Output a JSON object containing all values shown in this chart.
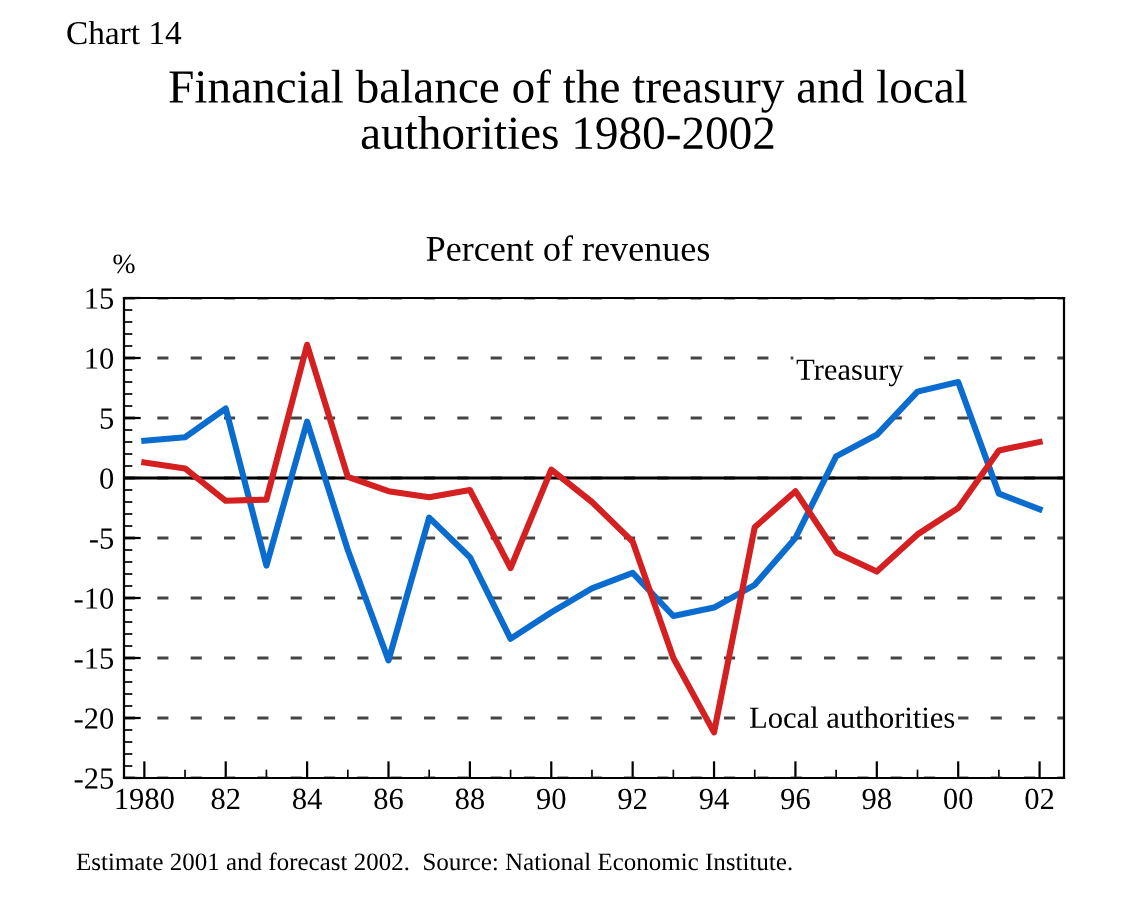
{
  "chart_data": {
    "type": "line",
    "title": "Financial balance of the treasury and local\nauthorities 1980-2002",
    "subtitle": "Percent of revenues",
    "ylabel": "%",
    "annotations": [
      "Chart 14",
      "Estimate 2001 and forecast 2002.  Source: National Economic Institute."
    ],
    "x": [
      1980,
      1981,
      1982,
      1983,
      1984,
      1985,
      1986,
      1987,
      1988,
      1989,
      1990,
      1991,
      1992,
      1993,
      1994,
      1995,
      1996,
      1997,
      1998,
      1999,
      2000,
      2001,
      2002
    ],
    "series": [
      {
        "name": "Treasury",
        "color": "#0a6ccf",
        "values": [
          3.1,
          3.4,
          5.8,
          -7.3,
          4.7,
          -6,
          -15.2,
          -3.3,
          -6.6,
          -13.4,
          -11.2,
          -9.2,
          -7.9,
          -11.5,
          -10.8,
          -8.9,
          -5.0,
          1.8,
          3.6,
          7.2,
          8.0,
          -1.3,
          -2.6
        ]
      },
      {
        "name": "Local authorities",
        "color": "#d42020",
        "values": [
          1.3,
          0.8,
          -1.9,
          -1.8,
          11.1,
          0.1,
          -1.1,
          -1.6,
          -1.0,
          -7.5,
          0.7,
          -2.0,
          -5.3,
          -15,
          -21.2,
          -4.1,
          -1.1,
          -6.2,
          -7.8,
          -4.7,
          -2.5,
          2.3,
          3.0
        ]
      }
    ],
    "xlim": [
      1979.5,
      2002.6
    ],
    "xticks": [
      {
        "value": 1980,
        "label": "1980"
      },
      {
        "value": 1982,
        "label": "82"
      },
      {
        "value": 1984,
        "label": "84"
      },
      {
        "value": 1986,
        "label": "86"
      },
      {
        "value": 1988,
        "label": "88"
      },
      {
        "value": 1990,
        "label": "90"
      },
      {
        "value": 1992,
        "label": "92"
      },
      {
        "value": 1994,
        "label": "94"
      },
      {
        "value": 1996,
        "label": "96"
      },
      {
        "value": 1998,
        "label": "98"
      },
      {
        "value": 2000,
        "label": "00"
      },
      {
        "value": 2002,
        "label": "02"
      }
    ],
    "ylim": [
      -25,
      15
    ],
    "yticks": [
      -25,
      -20,
      -15,
      -10,
      -5,
      0,
      5,
      10,
      15
    ],
    "ref_lines": [
      {
        "axis": "y",
        "value": 0,
        "color": "#000000",
        "line_style": "solid"
      }
    ],
    "grid": "y",
    "legend": false,
    "marker": "none",
    "line_style": "solid"
  }
}
